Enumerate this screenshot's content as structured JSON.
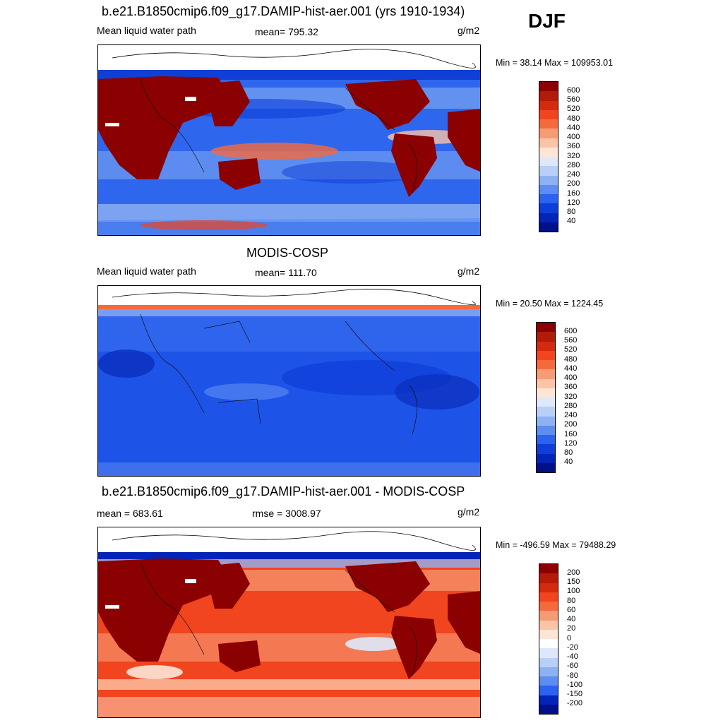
{
  "season": "DJF",
  "panels": [
    {
      "id": "model",
      "title": "b.e21.B1850cmip6.f09_g17.DAMIP-hist-aer.001 (yrs 1910-1934)",
      "left_label": "Mean liquid water path",
      "center_label": "mean= 795.32",
      "units": "g/m2",
      "minmax": "Min =  38.14 Max = 109953.01",
      "colorbar": {
        "labels": [
          "600",
          "560",
          "520",
          "480",
          "440",
          "400",
          "360",
          "320",
          "280",
          "240",
          "200",
          "160",
          "120",
          "80",
          "40"
        ],
        "colors": [
          "#8b0000",
          "#b31a08",
          "#d42a0d",
          "#f0451f",
          "#f56a3d",
          "#f79b75",
          "#fbc4a6",
          "#fde6d6",
          "#dde9fb",
          "#b8d0f8",
          "#8eb1f2",
          "#5d8df0",
          "#2b62ee",
          "#0d3ed8",
          "#0224b8",
          "#00108a"
        ]
      }
    },
    {
      "id": "obs",
      "title": "MODIS-COSP",
      "left_label": "Mean liquid water path",
      "center_label": "mean= 111.70",
      "units": "g/m2",
      "minmax": "Min =  20.50 Max = 1224.45",
      "colorbar": {
        "labels": [
          "600",
          "560",
          "520",
          "480",
          "440",
          "400",
          "360",
          "320",
          "280",
          "240",
          "200",
          "160",
          "120",
          "80",
          "40"
        ],
        "colors": [
          "#8b0000",
          "#b31a08",
          "#d42a0d",
          "#f0451f",
          "#f56a3d",
          "#f79b75",
          "#fbc4a6",
          "#fde6d6",
          "#dde9fb",
          "#b8d0f8",
          "#8eb1f2",
          "#5d8df0",
          "#2b62ee",
          "#0d3ed8",
          "#0224b8",
          "#00108a"
        ]
      }
    },
    {
      "id": "diff",
      "title": "b.e21.B1850cmip6.f09_g17.DAMIP-hist-aer.001 - MODIS-COSP",
      "left_label": "mean = 683.61",
      "center_label": "rmse = 3008.97",
      "units": "g/m2",
      "minmax": "Min = -496.59 Max = 79488.29",
      "colorbar": {
        "labels": [
          "200",
          "150",
          "100",
          "80",
          "60",
          "40",
          "20",
          "0",
          "-20",
          "-40",
          "-60",
          "-80",
          "-100",
          "-150",
          "-200"
        ],
        "colors": [
          "#8b0000",
          "#b31a08",
          "#d42a0d",
          "#f0451f",
          "#f56a3d",
          "#f79b75",
          "#fbc4a6",
          "#fde6d6",
          "#ffffff",
          "#dde9fb",
          "#b8d0f8",
          "#8eb1f2",
          "#5d8df0",
          "#2b62ee",
          "#0224b8",
          "#00108a"
        ]
      }
    }
  ]
}
